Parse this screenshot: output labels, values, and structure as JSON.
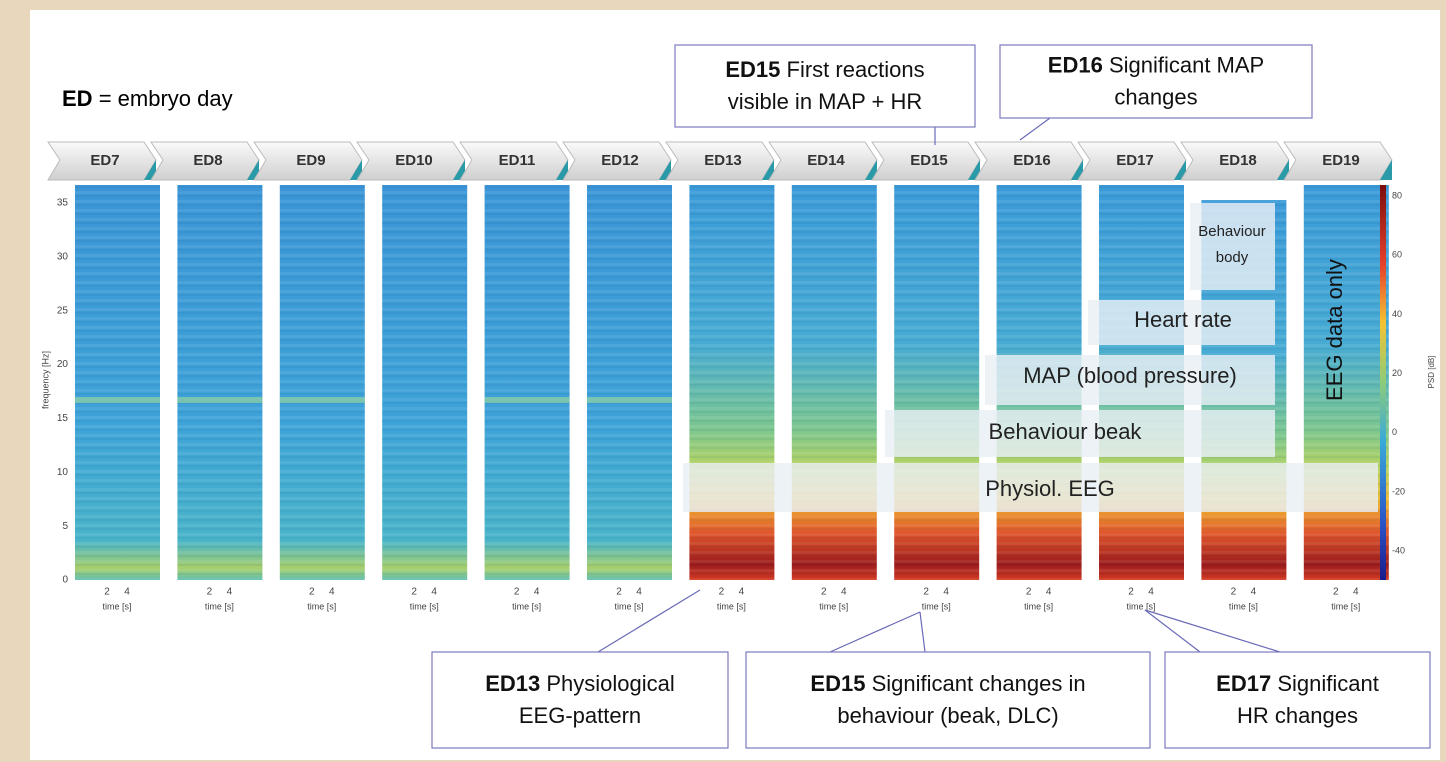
{
  "header": {
    "term": "ED",
    "definition": "= embryo day"
  },
  "days": [
    "ED7",
    "ED8",
    "ED9",
    "ED10",
    "ED11",
    "ED12",
    "ED13",
    "ED14",
    "ED15",
    "ED16",
    "ED17",
    "ED18",
    "ED19"
  ],
  "y_axis": {
    "label": "frequency [Hz]",
    "ticks": [
      "0",
      "5",
      "10",
      "15",
      "20",
      "25",
      "30",
      "35"
    ]
  },
  "x_axis": {
    "label": "time [s]",
    "ticks": [
      "2",
      "4"
    ]
  },
  "colorbar": {
    "label": "PSD [dB]",
    "ticks": [
      "80",
      "60",
      "40",
      "20",
      "0",
      "-20",
      "-40"
    ]
  },
  "bands": {
    "physiol_eeg": "Physiol. EEG",
    "behaviour_beak": "Behaviour beak",
    "map": "MAP (blood pressure)",
    "heart_rate": "Heart rate",
    "behaviour_body": [
      "Behaviour",
      "body"
    ],
    "eeg_only": "EEG data only"
  },
  "callouts": [
    {
      "day": "ED15",
      "lines": [
        "First reactions",
        "visible in MAP + HR"
      ]
    },
    {
      "day": "ED16",
      "lines": [
        "Significant MAP",
        "changes"
      ]
    },
    {
      "day": "ED13",
      "lines": [
        "Physiological",
        "EEG-pattern"
      ]
    },
    {
      "day": "ED15",
      "lines": [
        "Significant changes in",
        "behaviour (beak, DLC)"
      ]
    },
    {
      "day": "ED17",
      "lines": [
        "Significant",
        "HR changes"
      ]
    }
  ]
}
